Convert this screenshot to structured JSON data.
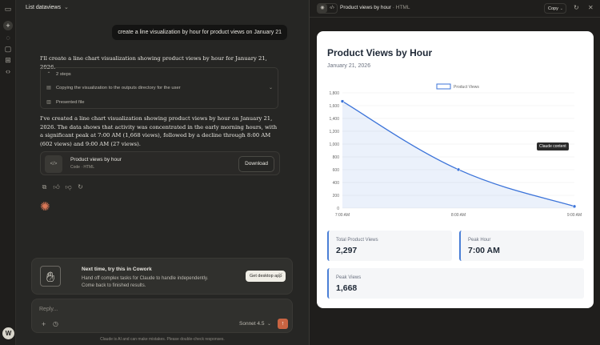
{
  "sidebar": {
    "avatar_initial": "W",
    "icons": [
      "sidebar-toggle-icon",
      "new-chat-icon",
      "chats-icon",
      "projects-icon",
      "artifacts-icon",
      "code-icon"
    ]
  },
  "chat": {
    "title": "List dataviews",
    "user_message": "create a line visualization by hour for product views on January 21",
    "assistant_intro": "I'll create a line chart visualization showing product views by hour for January 21, 2026.",
    "steps": {
      "summary": "2 steps",
      "items": [
        {
          "label": "Copying the visualization to the outputs directory for the user",
          "icon": "terminal-icon"
        },
        {
          "label": "Presented file",
          "icon": "file-icon"
        }
      ]
    },
    "assistant_summary": "I've created a line chart visualization showing product views by hour on January 21, 2026. The data shows that activity was concentrated in the early morning hours, with a significant peak at 7:00 AM (1,668 views), followed by a decline through 8:00 AM (602 views) and 9:00 AM (27 views).",
    "artifact": {
      "name": "Product views by hour",
      "type": "Code · HTML",
      "download_label": "Download"
    },
    "cowork": {
      "title": "Next time, try this in Cowork",
      "body": "Hand off complex tasks for Claude to handle independently. Come back to finished results.",
      "cta": "Get desktop app"
    },
    "composer": {
      "placeholder": "Reply...",
      "model": "Sonnet 4.5"
    },
    "disclaimer": "Claude is AI and can make mistakes. Please double-check responses."
  },
  "panel": {
    "title": "Product views by hour",
    "subtitle": "HTML",
    "copy_label": "Copy",
    "page": {
      "heading": "Product Views by Hour",
      "date": "January 21, 2026",
      "tooltip": "Claude content",
      "stats": [
        {
          "label": "Total Product Views",
          "value": "2,297"
        },
        {
          "label": "Peak Hour",
          "value": "7:00 AM"
        },
        {
          "label": "Peak Views",
          "value": "1,668"
        }
      ]
    }
  },
  "chart_data": {
    "type": "line",
    "title": "",
    "x": [
      "7:00 AM",
      "8:00 AM",
      "9:00 AM"
    ],
    "series": [
      {
        "name": "Product Views",
        "values": [
          1668,
          602,
          27
        ],
        "color": "#3b73d9"
      }
    ],
    "ylim": [
      0,
      1800
    ],
    "yticks": [
      0,
      200,
      400,
      600,
      800,
      1000,
      1200,
      1400,
      1600,
      1800
    ],
    "legend": "top-center",
    "grid": true
  }
}
